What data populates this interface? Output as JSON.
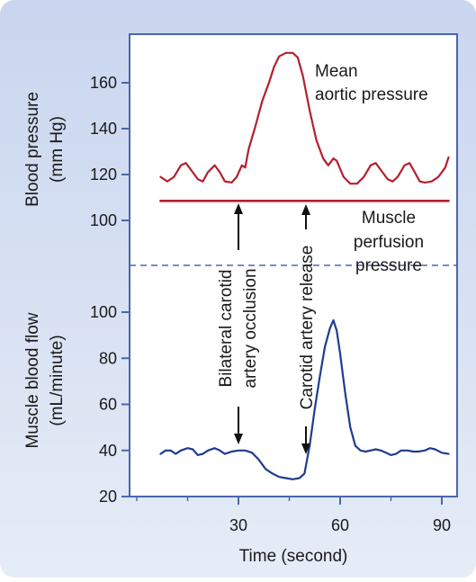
{
  "chart_data": {
    "type": "line",
    "x_axis": {
      "label": "Time (second)",
      "ticks": [
        30,
        60,
        90
      ],
      "range": [
        0,
        92
      ]
    },
    "panels": [
      {
        "name": "pressure",
        "ylabel": [
          "Blood pressure",
          "(mm Hg)"
        ],
        "ylim": [
          95,
          178
        ],
        "yticks": [
          100,
          120,
          140,
          160
        ],
        "series": [
          {
            "name": "Mean aortic pressure",
            "label_lines": [
              "Mean",
              "aortic pressure"
            ],
            "color": "#b3202d",
            "points": [
              [
                7,
                119
              ],
              [
                9,
                117
              ],
              [
                11,
                119
              ],
              [
                13,
                124
              ],
              [
                14.5,
                125
              ],
              [
                16,
                122
              ],
              [
                18,
                118
              ],
              [
                19.5,
                117
              ],
              [
                21,
                121
              ],
              [
                23,
                124
              ],
              [
                24.5,
                121
              ],
              [
                26,
                117
              ],
              [
                28,
                116.5
              ],
              [
                29.5,
                119
              ],
              [
                31,
                124
              ],
              [
                32,
                123
              ],
              [
                33,
                131
              ],
              [
                35,
                141
              ],
              [
                37,
                152
              ],
              [
                39,
                160
              ],
              [
                40.5,
                167
              ],
              [
                42,
                171.5
              ],
              [
                44,
                173
              ],
              [
                46,
                173
              ],
              [
                47.5,
                171
              ],
              [
                49,
                163
              ],
              [
                51,
                148
              ],
              [
                53,
                135
              ],
              [
                55,
                127
              ],
              [
                56.5,
                124
              ],
              [
                58,
                127
              ],
              [
                59,
                126
              ],
              [
                61,
                119
              ],
              [
                63,
                116
              ],
              [
                65,
                116
              ],
              [
                67,
                119
              ],
              [
                69,
                124
              ],
              [
                70.5,
                125
              ],
              [
                72,
                122
              ],
              [
                74,
                118
              ],
              [
                75.5,
                117
              ],
              [
                77,
                119
              ],
              [
                79,
                124
              ],
              [
                80.5,
                125
              ],
              [
                82,
                121
              ],
              [
                83.5,
                117
              ],
              [
                85,
                116.5
              ],
              [
                87,
                117
              ],
              [
                89,
                119
              ],
              [
                91,
                123
              ],
              [
                92,
                127.5
              ]
            ]
          },
          {
            "name": "Muscle perfusion pressure",
            "label_lines": [
              "Muscle",
              "perfusion",
              "pressure"
            ],
            "color": "#b3202d",
            "points": [
              [
                7,
                108.5
              ],
              [
                92,
                108.5
              ]
            ]
          }
        ]
      },
      {
        "name": "flow",
        "ylabel": [
          "Muscle blood flow",
          "(mL/minute)"
        ],
        "ylim": [
          20,
          104
        ],
        "yticks": [
          20,
          40,
          60,
          80,
          100
        ],
        "series": [
          {
            "name": "Muscle blood flow",
            "color": "#1f3c8f",
            "points": [
              [
                7,
                38.5
              ],
              [
                8.5,
                40
              ],
              [
                10,
                40
              ],
              [
                11.5,
                38.5
              ],
              [
                13,
                40
              ],
              [
                15,
                41
              ],
              [
                16.5,
                40.5
              ],
              [
                18,
                38
              ],
              [
                19.5,
                38.5
              ],
              [
                21,
                40
              ],
              [
                23,
                41
              ],
              [
                24.5,
                40
              ],
              [
                26,
                38.5
              ],
              [
                28,
                39.5
              ],
              [
                30,
                40
              ],
              [
                32,
                40
              ],
              [
                34,
                39
              ],
              [
                36,
                36
              ],
              [
                38,
                32
              ],
              [
                40,
                30
              ],
              [
                42,
                28.5
              ],
              [
                44,
                28
              ],
              [
                46,
                27.5
              ],
              [
                48,
                28
              ],
              [
                49.5,
                30
              ],
              [
                51,
                42
              ],
              [
                52.5,
                58
              ],
              [
                54,
                72
              ],
              [
                55.5,
                85
              ],
              [
                57,
                93
              ],
              [
                58,
                96.5
              ],
              [
                59,
                92
              ],
              [
                60,
                82
              ],
              [
                61.5,
                65
              ],
              [
                63,
                50
              ],
              [
                64.5,
                42
              ],
              [
                66,
                40
              ],
              [
                67.5,
                39.5
              ],
              [
                69,
                40
              ],
              [
                70.5,
                40.5
              ],
              [
                72,
                40
              ],
              [
                73.5,
                39
              ],
              [
                75,
                38
              ],
              [
                76.5,
                38.5
              ],
              [
                78,
                40
              ],
              [
                80,
                40
              ],
              [
                81.5,
                39.5
              ],
              [
                83,
                39.5
              ],
              [
                85,
                40
              ],
              [
                86.5,
                41
              ],
              [
                88,
                40.5
              ],
              [
                90,
                39
              ],
              [
                92,
                38.5
              ]
            ]
          }
        ]
      }
    ],
    "divider_style": "dashed",
    "annotations": {
      "occlusion": {
        "lines": [
          "Bilateral carotid",
          "artery occlusion"
        ],
        "time": 30
      },
      "release": {
        "lines": [
          "Carotid artery release"
        ],
        "time": 50
      }
    }
  }
}
